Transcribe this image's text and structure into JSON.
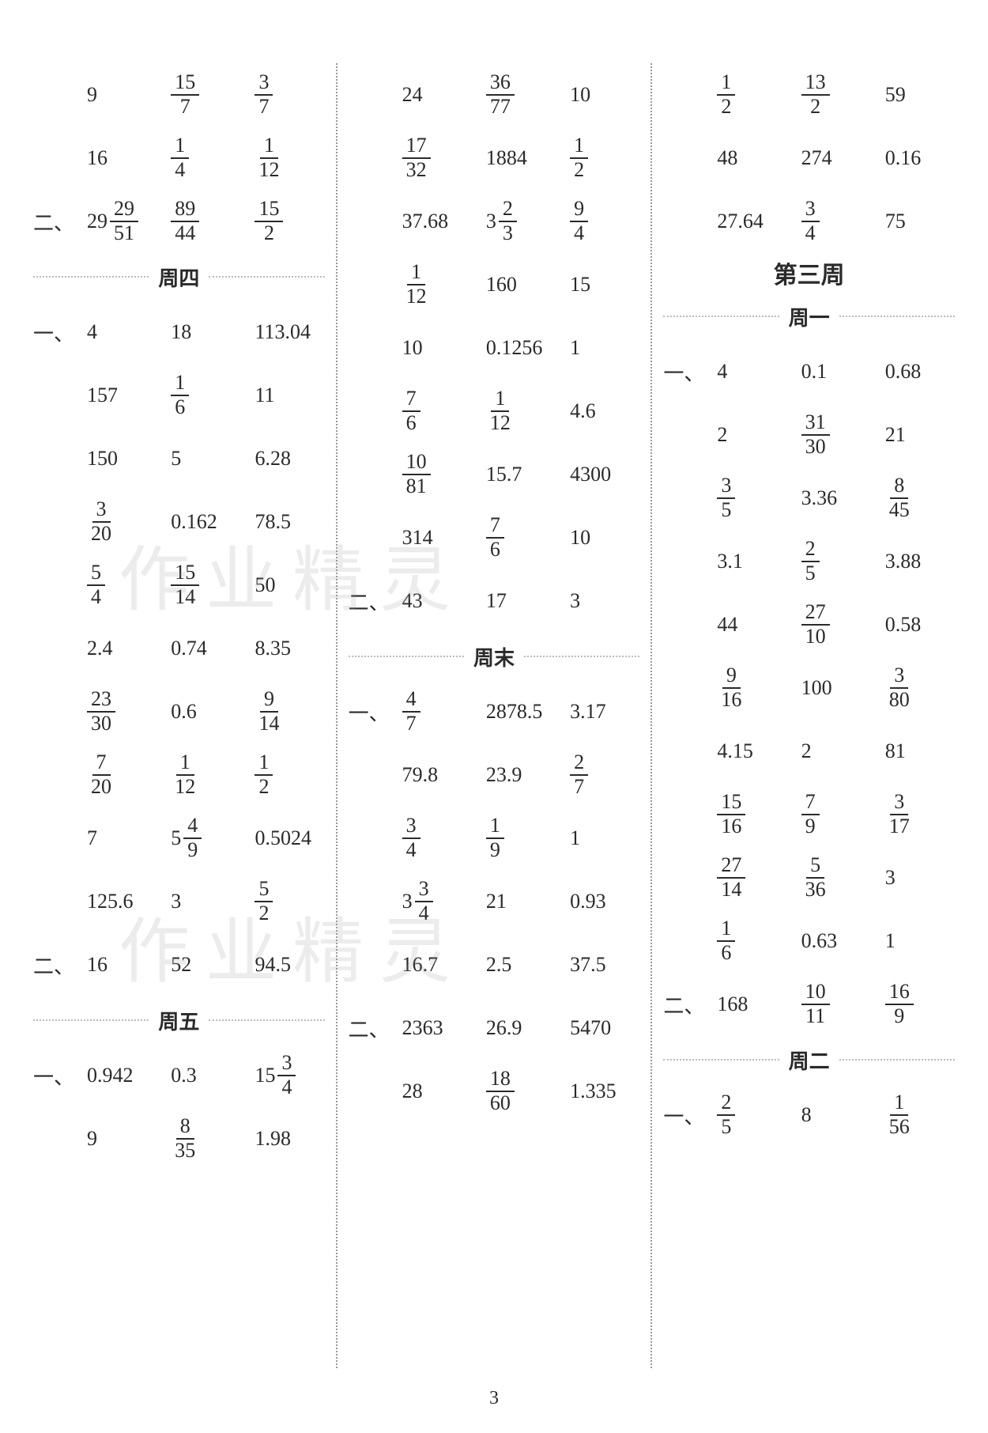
{
  "page_number": "3",
  "watermark_text": "作业精灵",
  "columns": [
    {
      "rows": [
        {
          "prefix": "",
          "cells": [
            "9",
            {
              "frac": [
                15,
                7
              ]
            },
            {
              "frac": [
                3,
                7
              ]
            }
          ]
        },
        {
          "prefix": "",
          "cells": [
            "16",
            {
              "frac": [
                1,
                4
              ]
            },
            {
              "frac": [
                1,
                12
              ]
            }
          ]
        },
        {
          "prefix": "二、",
          "cells": [
            {
              "mixed": [
                29,
                29,
                51
              ]
            },
            {
              "frac": [
                89,
                44
              ]
            },
            {
              "frac": [
                15,
                2
              ]
            }
          ]
        },
        {
          "heading": "周四"
        },
        {
          "prefix": "一、",
          "cells": [
            "4",
            "18",
            "113.04"
          ]
        },
        {
          "prefix": "",
          "cells": [
            "157",
            {
              "frac": [
                1,
                6
              ]
            },
            "11"
          ]
        },
        {
          "prefix": "",
          "cells": [
            "150",
            "5",
            "6.28"
          ]
        },
        {
          "prefix": "",
          "cells": [
            {
              "frac": [
                3,
                20
              ]
            },
            "0.162",
            "78.5"
          ]
        },
        {
          "prefix": "",
          "cells": [
            {
              "frac": [
                5,
                4
              ]
            },
            {
              "frac": [
                15,
                14
              ]
            },
            "50"
          ]
        },
        {
          "prefix": "",
          "cells": [
            "2.4",
            "0.74",
            "8.35"
          ]
        },
        {
          "prefix": "",
          "cells": [
            {
              "frac": [
                23,
                30
              ]
            },
            "0.6",
            {
              "frac": [
                9,
                14
              ]
            }
          ]
        },
        {
          "prefix": "",
          "cells": [
            {
              "frac": [
                7,
                20
              ]
            },
            {
              "frac": [
                1,
                12
              ]
            },
            {
              "frac": [
                1,
                2
              ]
            }
          ]
        },
        {
          "prefix": "",
          "cells": [
            "7",
            {
              "mixed": [
                5,
                4,
                9
              ]
            },
            "0.5024"
          ]
        },
        {
          "prefix": "",
          "cells": [
            "125.6",
            "3",
            {
              "frac": [
                5,
                2
              ]
            }
          ]
        },
        {
          "prefix": "二、",
          "cells": [
            "16",
            "52",
            "94.5"
          ]
        },
        {
          "heading": "周五"
        },
        {
          "prefix": "一、",
          "cells": [
            "0.942",
            "0.3",
            {
              "mixed": [
                15,
                3,
                4
              ]
            }
          ]
        },
        {
          "prefix": "",
          "cells": [
            "9",
            {
              "frac": [
                8,
                35
              ]
            },
            "1.98"
          ]
        }
      ]
    },
    {
      "rows": [
        {
          "prefix": "",
          "cells": [
            "24",
            {
              "frac": [
                36,
                77
              ]
            },
            "10"
          ]
        },
        {
          "prefix": "",
          "cells": [
            {
              "frac": [
                17,
                32
              ]
            },
            "1884",
            {
              "frac": [
                1,
                2
              ]
            }
          ]
        },
        {
          "prefix": "",
          "cells": [
            "37.68",
            {
              "mixed": [
                3,
                2,
                3
              ]
            },
            {
              "frac": [
                9,
                4
              ]
            }
          ]
        },
        {
          "prefix": "",
          "cells": [
            {
              "frac": [
                1,
                12
              ]
            },
            "160",
            "15"
          ]
        },
        {
          "prefix": "",
          "cells": [
            "10",
            "0.1256",
            "1"
          ]
        },
        {
          "prefix": "",
          "cells": [
            {
              "frac": [
                7,
                6
              ]
            },
            {
              "frac": [
                1,
                12
              ]
            },
            "4.6"
          ]
        },
        {
          "prefix": "",
          "cells": [
            {
              "frac": [
                10,
                81
              ]
            },
            "15.7",
            "4300"
          ]
        },
        {
          "prefix": "",
          "cells": [
            "314",
            {
              "frac": [
                7,
                6
              ]
            },
            "10"
          ]
        },
        {
          "prefix": "二、",
          "cells": [
            "43",
            "17",
            "3"
          ]
        },
        {
          "heading": "周末"
        },
        {
          "prefix": "一、",
          "cells": [
            {
              "frac": [
                4,
                7
              ]
            },
            "2878.5",
            "3.17"
          ]
        },
        {
          "prefix": "",
          "cells": [
            "79.8",
            "23.9",
            {
              "frac": [
                2,
                7
              ]
            }
          ]
        },
        {
          "prefix": "",
          "cells": [
            {
              "frac": [
                3,
                4
              ]
            },
            {
              "frac": [
                1,
                9
              ]
            },
            "1"
          ]
        },
        {
          "prefix": "",
          "cells": [
            {
              "mixed": [
                3,
                3,
                4
              ]
            },
            "21",
            "0.93"
          ]
        },
        {
          "prefix": "",
          "cells": [
            "16.7",
            "2.5",
            "37.5"
          ]
        },
        {
          "prefix": "二、",
          "cells": [
            "2363",
            "26.9",
            "5470"
          ]
        },
        {
          "prefix": "",
          "cells": [
            "28",
            {
              "frac": [
                18,
                60
              ]
            },
            "1.335"
          ]
        }
      ]
    },
    {
      "rows": [
        {
          "prefix": "",
          "cells": [
            {
              "frac": [
                1,
                2
              ]
            },
            {
              "frac": [
                13,
                2
              ]
            },
            "59"
          ]
        },
        {
          "prefix": "",
          "cells": [
            "48",
            "274",
            "0.16"
          ]
        },
        {
          "prefix": "",
          "cells": [
            "27.64",
            {
              "frac": [
                3,
                4
              ]
            },
            "75"
          ]
        },
        {
          "section": "第三周"
        },
        {
          "heading": "周一"
        },
        {
          "prefix": "一、",
          "cells": [
            "4",
            "0.1",
            "0.68"
          ]
        },
        {
          "prefix": "",
          "cells": [
            "2",
            {
              "frac": [
                31,
                30
              ]
            },
            "21"
          ]
        },
        {
          "prefix": "",
          "cells": [
            {
              "frac": [
                3,
                5
              ]
            },
            "3.36",
            {
              "frac": [
                8,
                45
              ]
            }
          ]
        },
        {
          "prefix": "",
          "cells": [
            "3.1",
            {
              "frac": [
                2,
                5
              ]
            },
            "3.88"
          ]
        },
        {
          "prefix": "",
          "cells": [
            "44",
            {
              "frac": [
                27,
                10
              ]
            },
            "0.58"
          ]
        },
        {
          "prefix": "",
          "cells": [
            {
              "frac": [
                9,
                16
              ]
            },
            "100",
            {
              "frac": [
                3,
                80
              ]
            }
          ]
        },
        {
          "prefix": "",
          "cells": [
            "4.15",
            "2",
            "81"
          ]
        },
        {
          "prefix": "",
          "cells": [
            {
              "frac": [
                15,
                16
              ]
            },
            {
              "frac": [
                7,
                9
              ]
            },
            {
              "frac": [
                3,
                17
              ]
            }
          ]
        },
        {
          "prefix": "",
          "cells": [
            {
              "frac": [
                27,
                14
              ]
            },
            {
              "frac": [
                5,
                36
              ]
            },
            "3"
          ]
        },
        {
          "prefix": "",
          "cells": [
            {
              "frac": [
                1,
                6
              ]
            },
            "0.63",
            "1"
          ]
        },
        {
          "prefix": "二、",
          "cells": [
            "168",
            {
              "frac": [
                10,
                11
              ]
            },
            {
              "frac": [
                16,
                9
              ]
            }
          ]
        },
        {
          "heading": "周二"
        },
        {
          "prefix": "一、",
          "cells": [
            {
              "frac": [
                2,
                5
              ]
            },
            "8",
            {
              "frac": [
                1,
                56
              ]
            }
          ]
        }
      ]
    }
  ]
}
